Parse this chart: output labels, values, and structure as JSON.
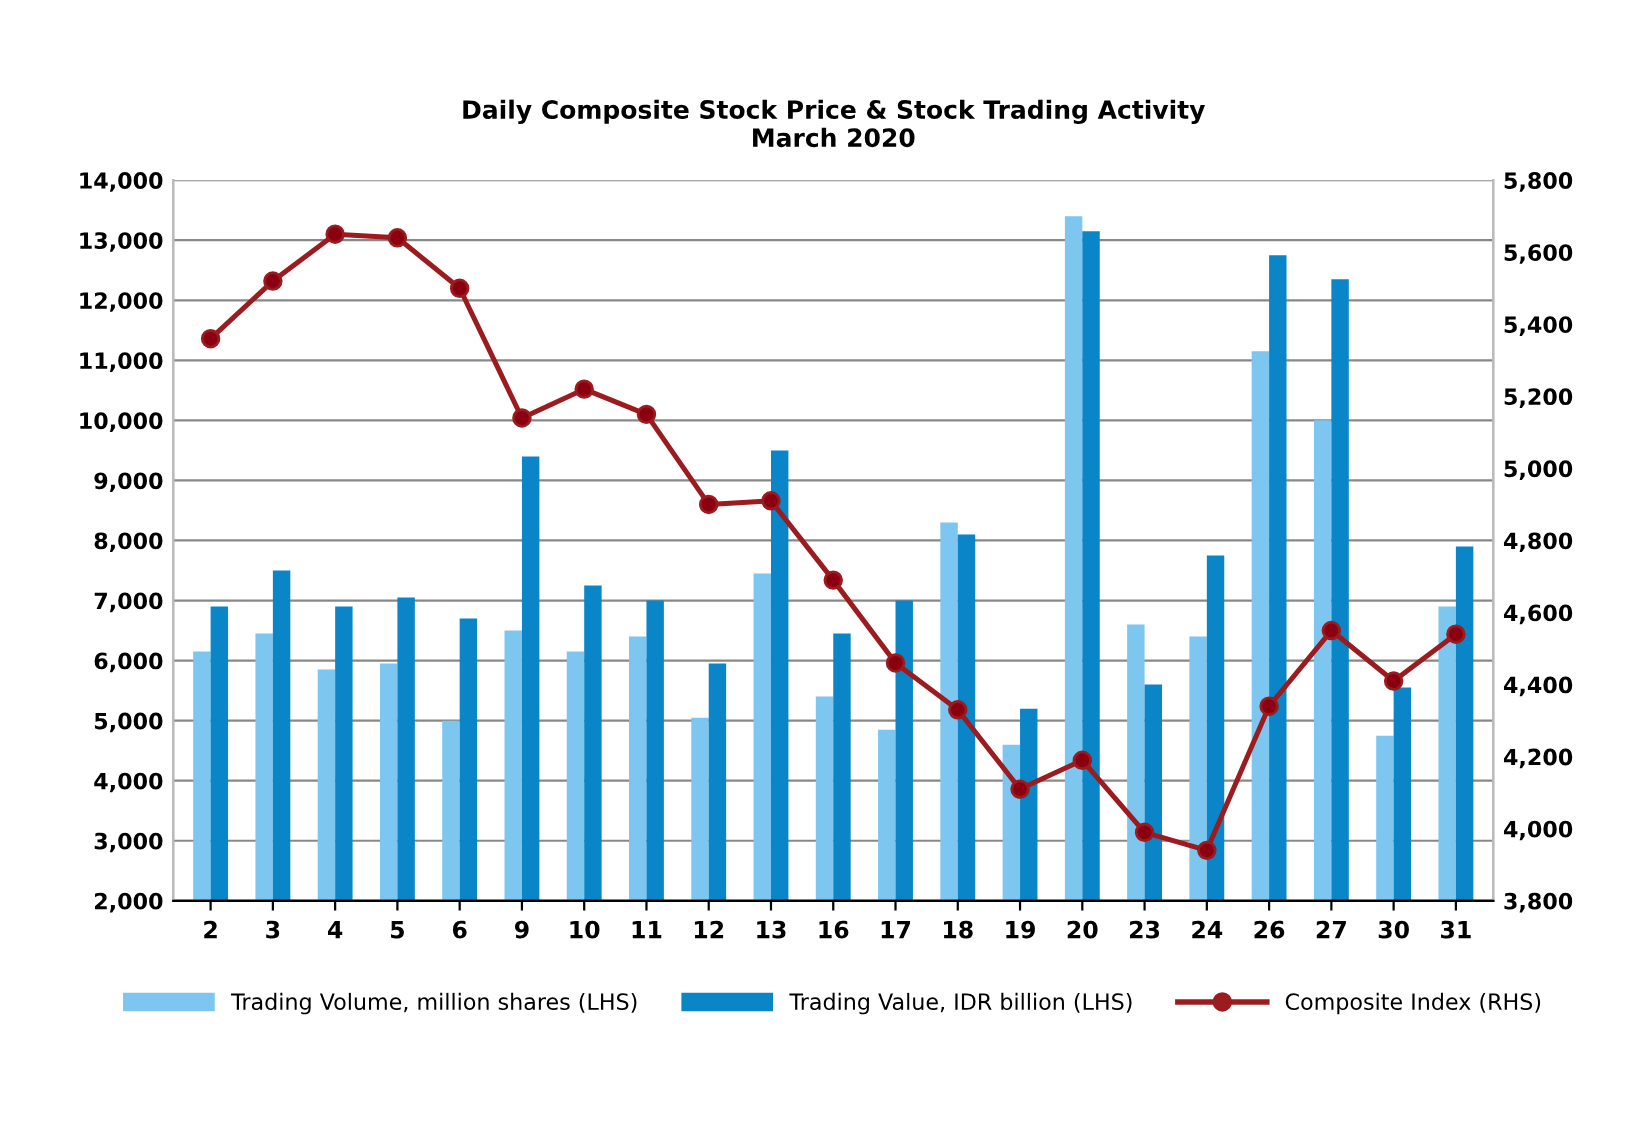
{
  "chart_data": {
    "type": "bar",
    "title": "Daily Composite Stock Price & Stock Trading Activity\nMarch 2020",
    "categories": [
      "2",
      "3",
      "4",
      "5",
      "6",
      "9",
      "10",
      "11",
      "12",
      "13",
      "16",
      "17",
      "18",
      "19",
      "20",
      "23",
      "24",
      "26",
      "27",
      "30",
      "31"
    ],
    "series": [
      {
        "name": "Trading Volume, million shares (LHS)",
        "color": "#7cc6f0",
        "values": [
          6150,
          6450,
          5850,
          5950,
          5000,
          6500,
          6150,
          6400,
          5050,
          7450,
          5400,
          4850,
          8300,
          4600,
          13400,
          6600,
          6400,
          11150,
          10000,
          4750,
          6900
        ]
      },
      {
        "name": "Trading Value, IDR billion (LHS)",
        "color": "#0a86c8",
        "values": [
          6900,
          7500,
          6900,
          7050,
          6700,
          9400,
          7250,
          7000,
          5950,
          9500,
          6450,
          7000,
          8100,
          5200,
          13150,
          5600,
          7750,
          12750,
          12350,
          5550,
          7900
        ]
      },
      {
        "name": "Composite Index (RHS)",
        "type": "line",
        "axis": "y2",
        "color": "#9b1b1f",
        "marker": "circle",
        "line_style": "solid",
        "values": [
          5360,
          5520,
          5650,
          5640,
          5500,
          5140,
          5220,
          5150,
          4900,
          4910,
          4690,
          4460,
          4330,
          4110,
          4190,
          3990,
          3940,
          4340,
          4550,
          4410,
          4540
        ]
      }
    ],
    "ylim": [
      2000,
      14000
    ],
    "yticks": [
      {
        "value": 2000,
        "label": "2,000"
      },
      {
        "value": 3000,
        "label": "3,000"
      },
      {
        "value": 4000,
        "label": "4,000"
      },
      {
        "value": 5000,
        "label": "5,000"
      },
      {
        "value": 6000,
        "label": "6,000"
      },
      {
        "value": 7000,
        "label": "7,000"
      },
      {
        "value": 8000,
        "label": "8,000"
      },
      {
        "value": 9000,
        "label": "9,000"
      },
      {
        "value": 10000,
        "label": "10,000"
      },
      {
        "value": 11000,
        "label": "11,000"
      },
      {
        "value": 12000,
        "label": "12,000"
      },
      {
        "value": 13000,
        "label": "13,000"
      },
      {
        "value": 14000,
        "label": "14,000"
      }
    ],
    "y2lim": [
      3800,
      5800
    ],
    "y2ticks": [
      {
        "value": 3800,
        "label": "3,800"
      },
      {
        "value": 4000,
        "label": "4,000"
      },
      {
        "value": 4200,
        "label": "4,200"
      },
      {
        "value": 4400,
        "label": "4,400"
      },
      {
        "value": 4600,
        "label": "4,600"
      },
      {
        "value": 4800,
        "label": "4,800"
      },
      {
        "value": 5000,
        "label": "5,000"
      },
      {
        "value": 5200,
        "label": "5,200"
      },
      {
        "value": 5400,
        "label": "5,400"
      },
      {
        "value": 5600,
        "label": "5,600"
      },
      {
        "value": 5800,
        "label": "5,800"
      }
    ],
    "grid": "y",
    "legend": "bottom"
  }
}
